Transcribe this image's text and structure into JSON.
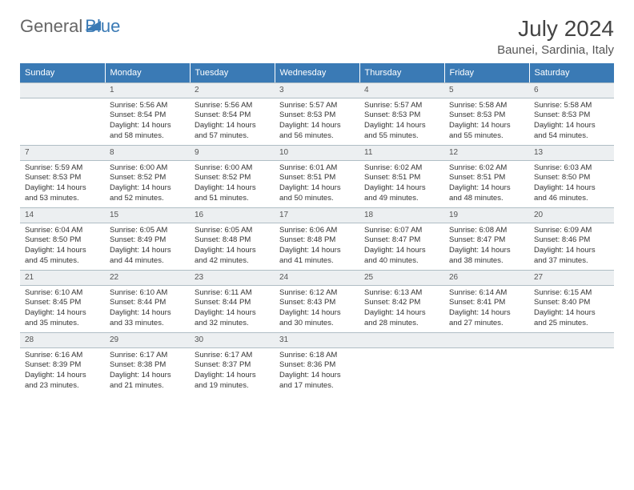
{
  "brand": {
    "part1": "General",
    "part2": "Blue"
  },
  "title": "July 2024",
  "location": "Baunei, Sardinia, Italy",
  "weekdays": [
    "Sunday",
    "Monday",
    "Tuesday",
    "Wednesday",
    "Thursday",
    "Friday",
    "Saturday"
  ],
  "colors": {
    "header_bg": "#3a7ab5",
    "daynum_bg": "#eceff1",
    "text": "#333333"
  },
  "weeks": [
    [
      {
        "num": "",
        "sunrise": "",
        "sunset": "",
        "daylight": ""
      },
      {
        "num": "1",
        "sunrise": "Sunrise: 5:56 AM",
        "sunset": "Sunset: 8:54 PM",
        "daylight": "Daylight: 14 hours and 58 minutes."
      },
      {
        "num": "2",
        "sunrise": "Sunrise: 5:56 AM",
        "sunset": "Sunset: 8:54 PM",
        "daylight": "Daylight: 14 hours and 57 minutes."
      },
      {
        "num": "3",
        "sunrise": "Sunrise: 5:57 AM",
        "sunset": "Sunset: 8:53 PM",
        "daylight": "Daylight: 14 hours and 56 minutes."
      },
      {
        "num": "4",
        "sunrise": "Sunrise: 5:57 AM",
        "sunset": "Sunset: 8:53 PM",
        "daylight": "Daylight: 14 hours and 55 minutes."
      },
      {
        "num": "5",
        "sunrise": "Sunrise: 5:58 AM",
        "sunset": "Sunset: 8:53 PM",
        "daylight": "Daylight: 14 hours and 55 minutes."
      },
      {
        "num": "6",
        "sunrise": "Sunrise: 5:58 AM",
        "sunset": "Sunset: 8:53 PM",
        "daylight": "Daylight: 14 hours and 54 minutes."
      }
    ],
    [
      {
        "num": "7",
        "sunrise": "Sunrise: 5:59 AM",
        "sunset": "Sunset: 8:53 PM",
        "daylight": "Daylight: 14 hours and 53 minutes."
      },
      {
        "num": "8",
        "sunrise": "Sunrise: 6:00 AM",
        "sunset": "Sunset: 8:52 PM",
        "daylight": "Daylight: 14 hours and 52 minutes."
      },
      {
        "num": "9",
        "sunrise": "Sunrise: 6:00 AM",
        "sunset": "Sunset: 8:52 PM",
        "daylight": "Daylight: 14 hours and 51 minutes."
      },
      {
        "num": "10",
        "sunrise": "Sunrise: 6:01 AM",
        "sunset": "Sunset: 8:51 PM",
        "daylight": "Daylight: 14 hours and 50 minutes."
      },
      {
        "num": "11",
        "sunrise": "Sunrise: 6:02 AM",
        "sunset": "Sunset: 8:51 PM",
        "daylight": "Daylight: 14 hours and 49 minutes."
      },
      {
        "num": "12",
        "sunrise": "Sunrise: 6:02 AM",
        "sunset": "Sunset: 8:51 PM",
        "daylight": "Daylight: 14 hours and 48 minutes."
      },
      {
        "num": "13",
        "sunrise": "Sunrise: 6:03 AM",
        "sunset": "Sunset: 8:50 PM",
        "daylight": "Daylight: 14 hours and 46 minutes."
      }
    ],
    [
      {
        "num": "14",
        "sunrise": "Sunrise: 6:04 AM",
        "sunset": "Sunset: 8:50 PM",
        "daylight": "Daylight: 14 hours and 45 minutes."
      },
      {
        "num": "15",
        "sunrise": "Sunrise: 6:05 AM",
        "sunset": "Sunset: 8:49 PM",
        "daylight": "Daylight: 14 hours and 44 minutes."
      },
      {
        "num": "16",
        "sunrise": "Sunrise: 6:05 AM",
        "sunset": "Sunset: 8:48 PM",
        "daylight": "Daylight: 14 hours and 42 minutes."
      },
      {
        "num": "17",
        "sunrise": "Sunrise: 6:06 AM",
        "sunset": "Sunset: 8:48 PM",
        "daylight": "Daylight: 14 hours and 41 minutes."
      },
      {
        "num": "18",
        "sunrise": "Sunrise: 6:07 AM",
        "sunset": "Sunset: 8:47 PM",
        "daylight": "Daylight: 14 hours and 40 minutes."
      },
      {
        "num": "19",
        "sunrise": "Sunrise: 6:08 AM",
        "sunset": "Sunset: 8:47 PM",
        "daylight": "Daylight: 14 hours and 38 minutes."
      },
      {
        "num": "20",
        "sunrise": "Sunrise: 6:09 AM",
        "sunset": "Sunset: 8:46 PM",
        "daylight": "Daylight: 14 hours and 37 minutes."
      }
    ],
    [
      {
        "num": "21",
        "sunrise": "Sunrise: 6:10 AM",
        "sunset": "Sunset: 8:45 PM",
        "daylight": "Daylight: 14 hours and 35 minutes."
      },
      {
        "num": "22",
        "sunrise": "Sunrise: 6:10 AM",
        "sunset": "Sunset: 8:44 PM",
        "daylight": "Daylight: 14 hours and 33 minutes."
      },
      {
        "num": "23",
        "sunrise": "Sunrise: 6:11 AM",
        "sunset": "Sunset: 8:44 PM",
        "daylight": "Daylight: 14 hours and 32 minutes."
      },
      {
        "num": "24",
        "sunrise": "Sunrise: 6:12 AM",
        "sunset": "Sunset: 8:43 PM",
        "daylight": "Daylight: 14 hours and 30 minutes."
      },
      {
        "num": "25",
        "sunrise": "Sunrise: 6:13 AM",
        "sunset": "Sunset: 8:42 PM",
        "daylight": "Daylight: 14 hours and 28 minutes."
      },
      {
        "num": "26",
        "sunrise": "Sunrise: 6:14 AM",
        "sunset": "Sunset: 8:41 PM",
        "daylight": "Daylight: 14 hours and 27 minutes."
      },
      {
        "num": "27",
        "sunrise": "Sunrise: 6:15 AM",
        "sunset": "Sunset: 8:40 PM",
        "daylight": "Daylight: 14 hours and 25 minutes."
      }
    ],
    [
      {
        "num": "28",
        "sunrise": "Sunrise: 6:16 AM",
        "sunset": "Sunset: 8:39 PM",
        "daylight": "Daylight: 14 hours and 23 minutes."
      },
      {
        "num": "29",
        "sunrise": "Sunrise: 6:17 AM",
        "sunset": "Sunset: 8:38 PM",
        "daylight": "Daylight: 14 hours and 21 minutes."
      },
      {
        "num": "30",
        "sunrise": "Sunrise: 6:17 AM",
        "sunset": "Sunset: 8:37 PM",
        "daylight": "Daylight: 14 hours and 19 minutes."
      },
      {
        "num": "31",
        "sunrise": "Sunrise: 6:18 AM",
        "sunset": "Sunset: 8:36 PM",
        "daylight": "Daylight: 14 hours and 17 minutes."
      },
      {
        "num": "",
        "sunrise": "",
        "sunset": "",
        "daylight": ""
      },
      {
        "num": "",
        "sunrise": "",
        "sunset": "",
        "daylight": ""
      },
      {
        "num": "",
        "sunrise": "",
        "sunset": "",
        "daylight": ""
      }
    ]
  ]
}
